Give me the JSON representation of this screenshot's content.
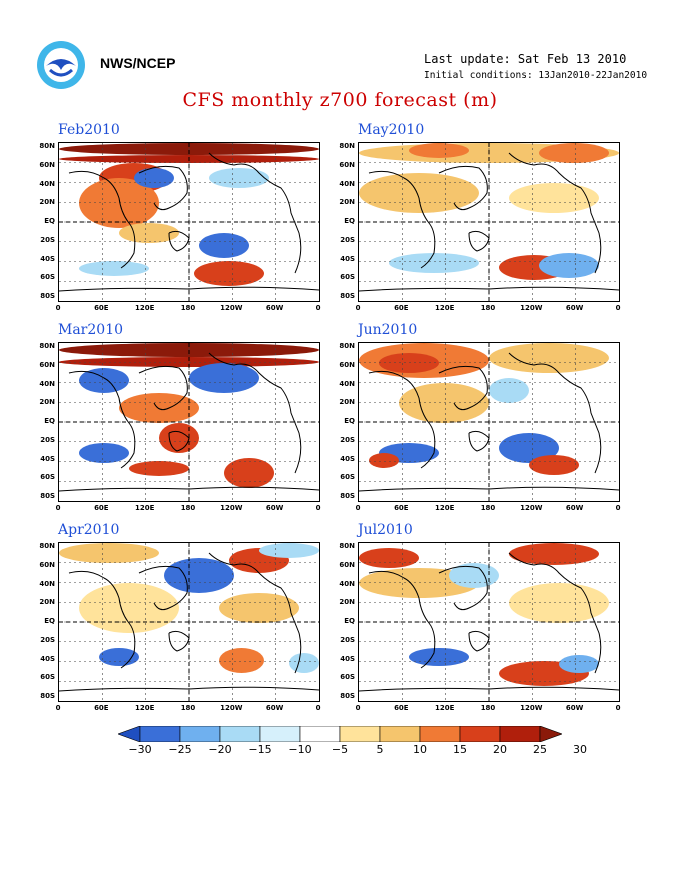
{
  "header": {
    "org": "NWS/NCEP",
    "last_update": "Last update: Sat Feb 13 2010",
    "initial_conditions": "Initial conditions: 13Jan2010-22Jan2010",
    "title": "CFS monthly z700 forecast (m)",
    "logo_icon": "noaa-logo-icon"
  },
  "axes": {
    "y_ticks": [
      "80N",
      "60N",
      "40N",
      "20N",
      "EQ",
      "20S",
      "40S",
      "60S",
      "80S"
    ],
    "x_ticks": [
      "0",
      "60E",
      "120E",
      "180",
      "120W",
      "60W",
      "0"
    ]
  },
  "panels": [
    {
      "label": "Feb2010",
      "blobs": [
        [
          "#8b1a0a",
          0,
          0,
          260,
          12
        ],
        [
          "#b01f0c",
          0,
          12,
          260,
          8
        ],
        [
          "#d8401b",
          40,
          20,
          70,
          30
        ],
        [
          "#f07a35",
          20,
          35,
          80,
          50
        ],
        [
          "#3a6fd8",
          75,
          25,
          40,
          20
        ],
        [
          "#a9dbf5",
          150,
          25,
          60,
          20
        ],
        [
          "#3a6fd8",
          140,
          90,
          50,
          25
        ],
        [
          "#d8401b",
          135,
          118,
          70,
          25
        ],
        [
          "#f5c56d",
          60,
          80,
          60,
          20
        ],
        [
          "#a9dbf5",
          20,
          118,
          70,
          15
        ]
      ]
    },
    {
      "label": "May2010",
      "blobs": [
        [
          "#f5c56d",
          0,
          0,
          260,
          20
        ],
        [
          "#f07a35",
          50,
          0,
          60,
          15
        ],
        [
          "#f07a35",
          180,
          0,
          70,
          20
        ],
        [
          "#f5c56d",
          0,
          30,
          120,
          40
        ],
        [
          "#ffe39b",
          150,
          40,
          90,
          30
        ],
        [
          "#a9dbf5",
          30,
          110,
          90,
          20
        ],
        [
          "#d8401b",
          140,
          112,
          70,
          25
        ],
        [
          "#6fb0ef",
          180,
          110,
          60,
          25
        ]
      ]
    },
    {
      "label": "Mar2010",
      "blobs": [
        [
          "#8b1a0a",
          0,
          0,
          260,
          14
        ],
        [
          "#b01f0c",
          0,
          14,
          260,
          10
        ],
        [
          "#3a6fd8",
          20,
          25,
          50,
          25
        ],
        [
          "#3a6fd8",
          130,
          20,
          70,
          30
        ],
        [
          "#f07a35",
          60,
          50,
          80,
          30
        ],
        [
          "#d8401b",
          100,
          80,
          40,
          30
        ],
        [
          "#3a6fd8",
          20,
          100,
          50,
          20
        ],
        [
          "#d8401b",
          165,
          115,
          50,
          30
        ],
        [
          "#d8401b",
          70,
          118,
          60,
          15
        ]
      ]
    },
    {
      "label": "Jun2010",
      "blobs": [
        [
          "#f07a35",
          0,
          0,
          130,
          35
        ],
        [
          "#d8401b",
          20,
          10,
          60,
          20
        ],
        [
          "#f5c56d",
          130,
          0,
          120,
          30
        ],
        [
          "#a9dbf5",
          130,
          35,
          40,
          25
        ],
        [
          "#f5c56d",
          40,
          40,
          90,
          40
        ],
        [
          "#3a6fd8",
          140,
          90,
          60,
          30
        ],
        [
          "#d8401b",
          170,
          112,
          50,
          20
        ],
        [
          "#3a6fd8",
          20,
          100,
          60,
          20
        ],
        [
          "#d8401b",
          10,
          110,
          30,
          15
        ]
      ]
    },
    {
      "label": "Apr2010",
      "blobs": [
        [
          "#f5c56d",
          0,
          0,
          100,
          20
        ],
        [
          "#3a6fd8",
          105,
          15,
          70,
          35
        ],
        [
          "#d8401b",
          170,
          5,
          60,
          25
        ],
        [
          "#a9dbf5",
          200,
          0,
          60,
          15
        ],
        [
          "#ffe39b",
          20,
          40,
          100,
          50
        ],
        [
          "#f5c56d",
          160,
          50,
          80,
          30
        ],
        [
          "#3a6fd8",
          40,
          105,
          40,
          18
        ],
        [
          "#f07a35",
          160,
          105,
          45,
          25
        ],
        [
          "#a9dbf5",
          230,
          110,
          30,
          20
        ]
      ]
    },
    {
      "label": "Jul2010",
      "blobs": [
        [
          "#d8401b",
          0,
          5,
          60,
          20
        ],
        [
          "#d8401b",
          150,
          0,
          90,
          22
        ],
        [
          "#f5c56d",
          0,
          25,
          120,
          30
        ],
        [
          "#a9dbf5",
          90,
          20,
          50,
          25
        ],
        [
          "#ffe39b",
          150,
          40,
          100,
          40
        ],
        [
          "#3a6fd8",
          50,
          105,
          60,
          18
        ],
        [
          "#d8401b",
          140,
          118,
          90,
          25
        ],
        [
          "#6fb0ef",
          200,
          112,
          40,
          18
        ]
      ]
    }
  ],
  "colorbar": {
    "labels": [
      "-30",
      "-25",
      "-20",
      "-15",
      "-10",
      "-5",
      "5",
      "10",
      "15",
      "20",
      "25",
      "30"
    ],
    "colors": [
      "#1f4fc0",
      "#3a6fd8",
      "#6fb0ef",
      "#a9dbf5",
      "#d6f0fb",
      "#ffffff",
      "#ffe39b",
      "#f5c56d",
      "#f07a35",
      "#d8401b",
      "#b01f0c",
      "#8b1a0a"
    ]
  }
}
